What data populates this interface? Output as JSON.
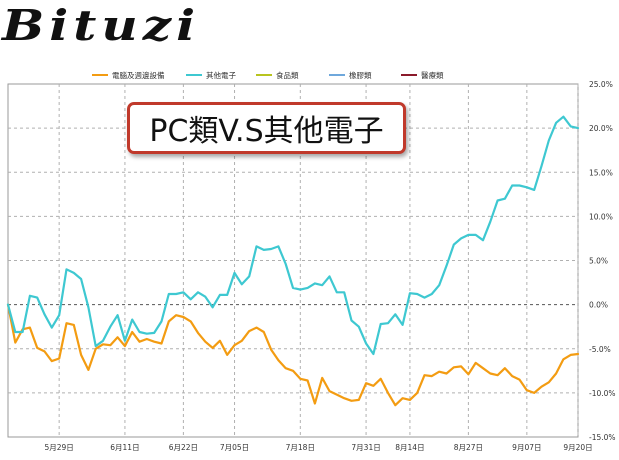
{
  "logo": {
    "text": "Bituzi"
  },
  "callout": {
    "text": "PC類V.S其他電子"
  },
  "chart_data": {
    "type": "line",
    "legend_position": "top",
    "grid": true,
    "ylim": [
      -15,
      25
    ],
    "yticks": [
      25,
      20,
      15,
      10,
      5,
      0,
      -5,
      -10,
      -15
    ],
    "ytick_labels": [
      "25.0%",
      "20.0%",
      "15.0%",
      "10.0%",
      "5.0%",
      "0.0%",
      "-5.0%",
      "-10.0%",
      "-15.0%"
    ],
    "x_count": 79,
    "xticks": [
      {
        "index": 7,
        "label": "5月29日"
      },
      {
        "index": 16,
        "label": "6月11日"
      },
      {
        "index": 24,
        "label": "6月22日"
      },
      {
        "index": 31,
        "label": "7月05日"
      },
      {
        "index": 40,
        "label": "7月18日"
      },
      {
        "index": 49,
        "label": "7月31日"
      },
      {
        "index": 55,
        "label": "8月14日"
      },
      {
        "index": 63,
        "label": "8月27日"
      },
      {
        "index": 71,
        "label": "9月07日"
      },
      {
        "index": 78,
        "label": "9月20日"
      }
    ],
    "series": [
      {
        "name": "電腦及週邊設備",
        "color": "#f39c12",
        "values": [
          0,
          -4.3,
          -2.8,
          -2.6,
          -4.9,
          -5.3,
          -6.4,
          -6.1,
          -2.1,
          -2.3,
          -5.7,
          -7.4,
          -5,
          -4.5,
          -4.6,
          -3.7,
          -4.7,
          -3.1,
          -4.2,
          -3.9,
          -4.2,
          -4.4,
          -1.9,
          -1.2,
          -1.4,
          -1.9,
          -3.2,
          -4.2,
          -4.9,
          -4.1,
          -5.7,
          -4.6,
          -4.1,
          -3,
          -2.6,
          -3.1,
          -5.1,
          -6.3,
          -7.2,
          -7.5,
          -8.4,
          -8.6,
          -11.2,
          -8.3,
          -9.8,
          -10.2,
          -10.6,
          -10.9,
          -10.8,
          -8.9,
          -9.2,
          -8.4,
          -10,
          -11.4,
          -10.6,
          -10.8,
          -10,
          -8,
          -8.1,
          -7.6,
          -7.8,
          -7.1,
          -7,
          -7.9,
          -6.6,
          -7.2,
          -7.8,
          -8,
          -7.2,
          -8.1,
          -8.5,
          -9.7,
          -10,
          -9.3,
          -8.8,
          -7.8,
          -6.2,
          -5.7,
          -5.6
        ]
      },
      {
        "name": "其他電子",
        "color": "#3ec8d1",
        "values": [
          0,
          -3.1,
          -3.1,
          1,
          0.8,
          -1.1,
          -2.6,
          -1.2,
          4,
          3.6,
          2.9,
          -0.3,
          -4.7,
          -4.1,
          -2.5,
          -1.2,
          -4.1,
          -1.7,
          -3.1,
          -3.3,
          -3.2,
          -1.9,
          1.2,
          1.2,
          1.4,
          0.6,
          1.4,
          0.9,
          -0.3,
          1.1,
          1.1,
          3.6,
          2.3,
          3.2,
          6.6,
          6.2,
          6.3,
          6.6,
          4.6,
          1.9,
          1.7,
          1.9,
          2.4,
          2.2,
          3.2,
          1.4,
          1.4,
          -1.8,
          -2.5,
          -4.4,
          -5.6,
          -2.2,
          -2.1,
          -1.1,
          -2.3,
          1.3,
          1.2,
          0.8,
          1.2,
          2.2,
          4.4,
          6.8,
          7.5,
          7.9,
          7.9,
          7.3,
          9.4,
          11.8,
          12,
          13.5,
          13.5,
          13.3,
          13,
          15.7,
          18.6,
          20.6,
          21.3,
          20.2,
          20
        ]
      },
      {
        "name": "食品類",
        "color": "#b8c41f",
        "values": []
      },
      {
        "name": "橡膠類",
        "color": "#6fa8dc",
        "values": []
      },
      {
        "name": "醫療類",
        "color": "#8b1a2b",
        "values": []
      }
    ]
  }
}
